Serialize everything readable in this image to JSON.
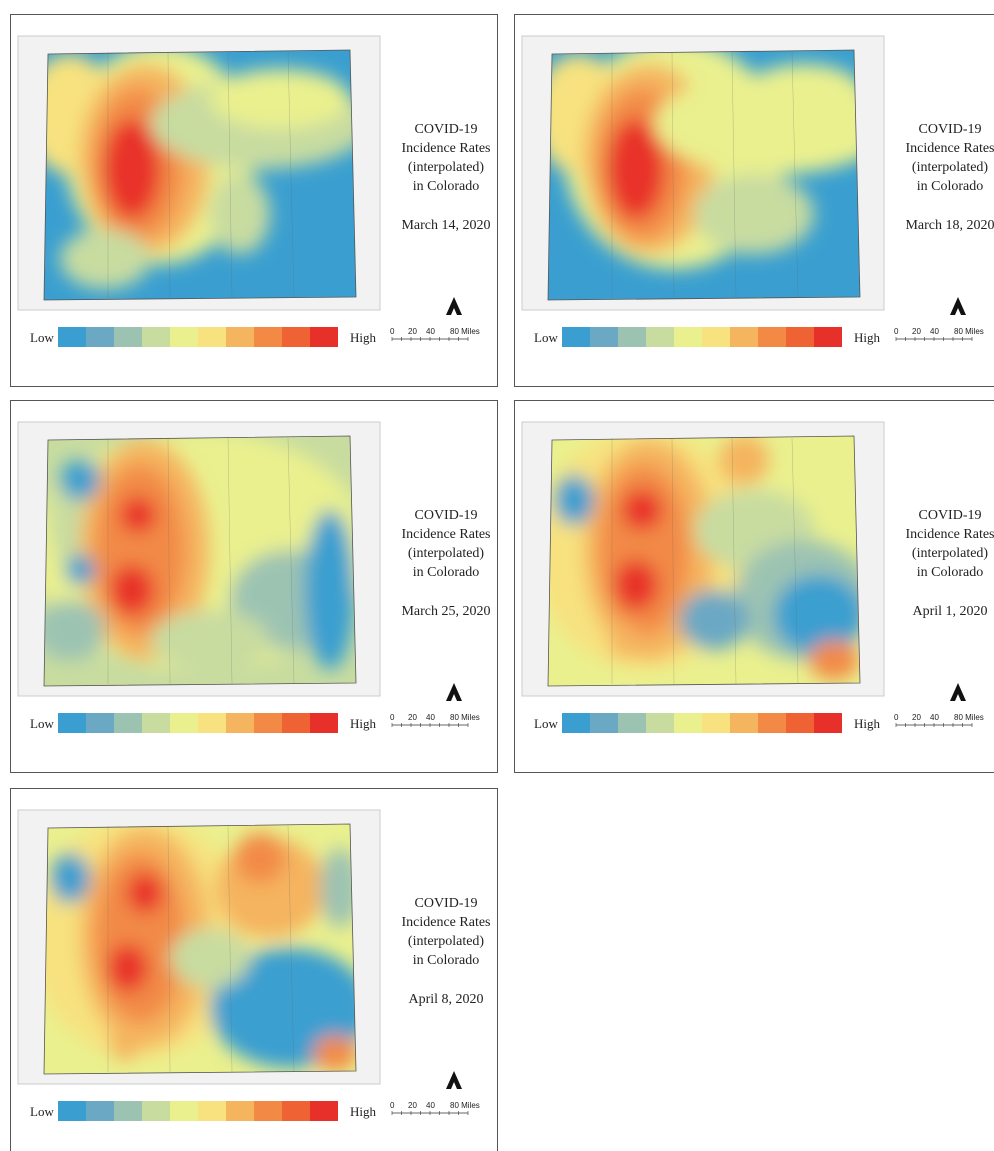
{
  "map_title": [
    "COVID-19",
    "Incidence Rates",
    "(interpolated)",
    "in Colorado"
  ],
  "panels": [
    {
      "date": "March 14, 2020"
    },
    {
      "date": "March 18, 2020"
    },
    {
      "date": "March 25, 2020"
    },
    {
      "date": "April 1, 2020"
    },
    {
      "date": "April 8, 2020"
    }
  ],
  "legend": {
    "low": "Low",
    "high": "High"
  },
  "scale": [
    "0",
    "20",
    "40",
    "80 Miles"
  ]
}
